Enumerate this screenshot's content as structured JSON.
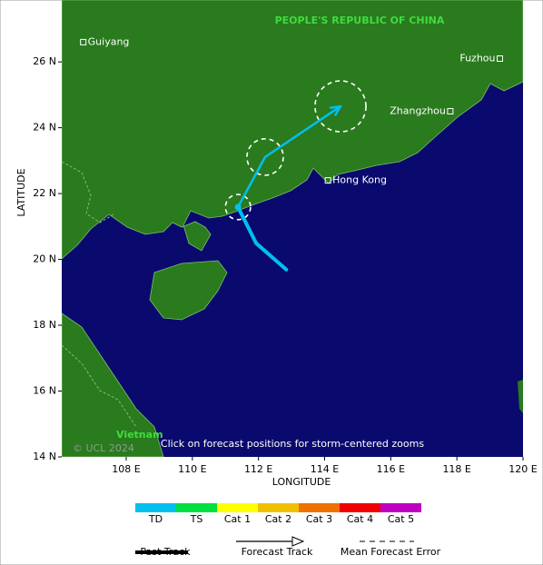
{
  "map": {
    "xlim": [
      106.05,
      120
    ],
    "ylim": [
      14,
      27.88
    ],
    "xticks": [
      {
        "value": 108,
        "label": "108 E"
      },
      {
        "value": 110,
        "label": "110 E"
      },
      {
        "value": 112,
        "label": "112 E"
      },
      {
        "value": 114,
        "label": "114 E"
      },
      {
        "value": 116,
        "label": "116 E"
      },
      {
        "value": 118,
        "label": "118 E"
      },
      {
        "value": 120,
        "label": "120 E"
      }
    ],
    "yticks": [
      {
        "value": 14,
        "label": "14 N"
      },
      {
        "value": 16,
        "label": "16 N"
      },
      {
        "value": 18,
        "label": "18 N"
      },
      {
        "value": 20,
        "label": "20 N"
      },
      {
        "value": 22,
        "label": "22 N"
      },
      {
        "value": 24,
        "label": "24 N"
      },
      {
        "value": 26,
        "label": "26 N"
      }
    ],
    "xlabel": "LONGITUDE",
    "ylabel": "LATITUDE",
    "country_label": "PEOPLE'S REPUBLIC OF CHINA",
    "country_label_2": "Vietnam",
    "copyright": "© UCL 2024",
    "hint": "Click on forecast positions for storm-centered zooms",
    "cities": [
      {
        "name": "Guiyang",
        "lon": 106.7,
        "lat": 26.6
      },
      {
        "name": "Fuzhou",
        "lon": 119.3,
        "lat": 26.1
      },
      {
        "name": "Zhangzhou",
        "lon": 117.8,
        "lat": 24.5
      },
      {
        "name": "Hong Kong",
        "lon": 114.1,
        "lat": 22.4
      }
    ],
    "past_track": {
      "lon": [
        112.84,
        111.93,
        111.38
      ],
      "lat": [
        19.69,
        20.49,
        21.59
      ],
      "color": "#00c0f0"
    },
    "forecast_track": {
      "lon": [
        111.38,
        112.2,
        114.48
      ],
      "lat": [
        21.59,
        23.11,
        24.65
      ],
      "color": "#00c0f0"
    },
    "error_circles": [
      {
        "lon": 111.38,
        "lat": 21.59,
        "radius": 0.38
      },
      {
        "lon": 112.2,
        "lat": 23.11,
        "radius": 0.55
      },
      {
        "lon": 114.48,
        "lat": 24.65,
        "radius": 0.77
      }
    ],
    "intensity_legend": [
      {
        "name": "TD",
        "color": "#00c0f0"
      },
      {
        "name": "TS",
        "color": "#00e040"
      },
      {
        "name": "Cat 1",
        "color": "#ffff00"
      },
      {
        "name": "Cat 2",
        "color": "#f0c000"
      },
      {
        "name": "Cat 3",
        "color": "#f07000"
      },
      {
        "name": "Cat 4",
        "color": "#f00000"
      },
      {
        "name": "Cat 5",
        "color": "#c000c0"
      }
    ],
    "track_legend": [
      "Past Track",
      "Forecast Track",
      "Mean Forecast Error"
    ]
  }
}
